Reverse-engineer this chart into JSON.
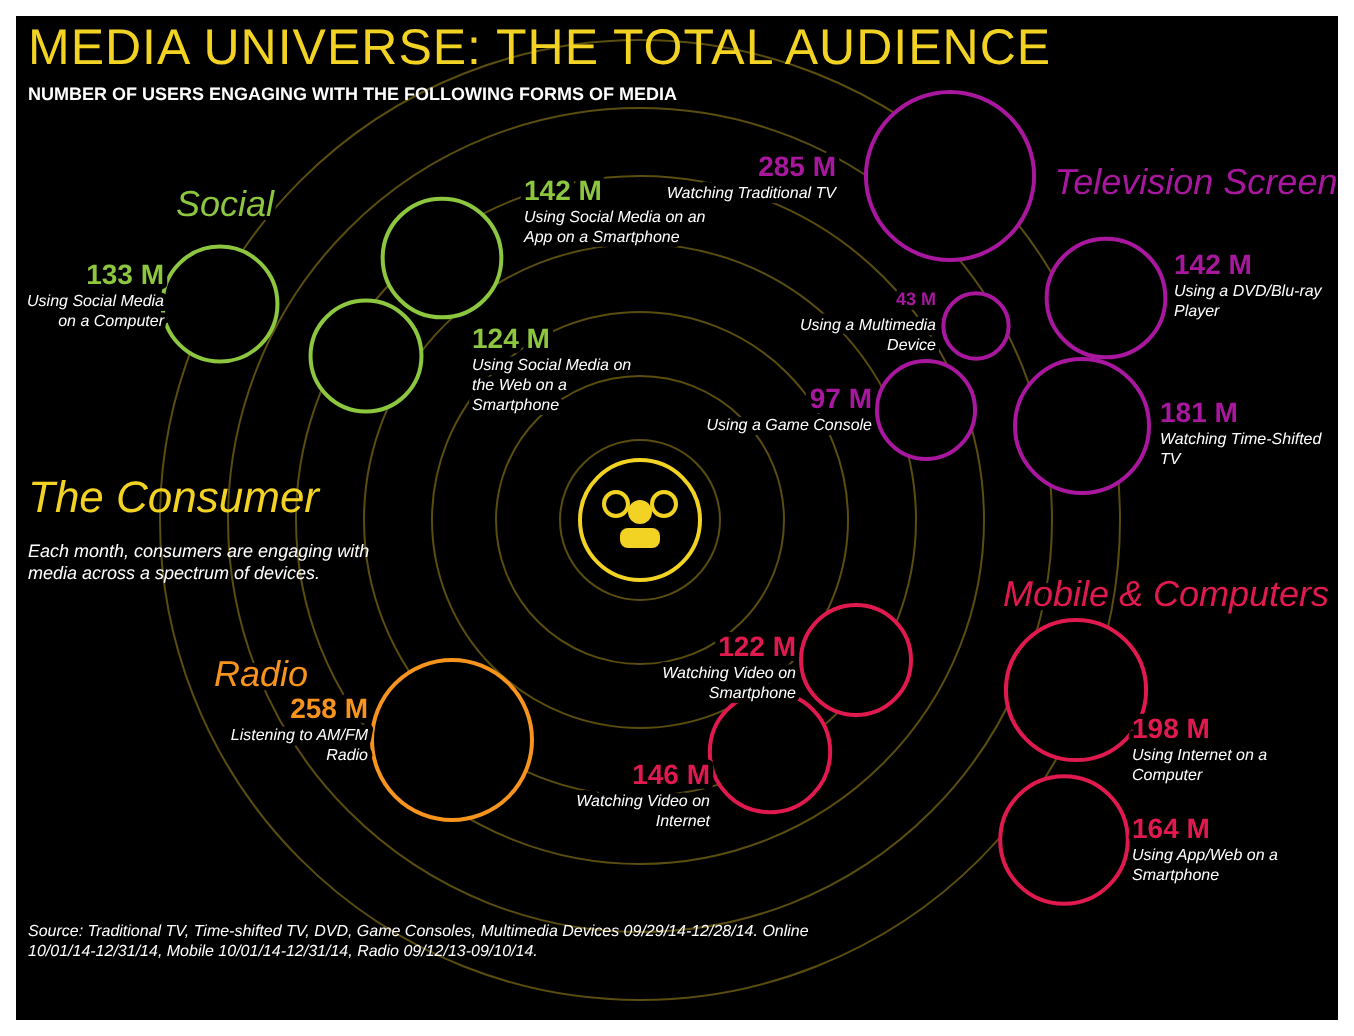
{
  "chart_data": {
    "type": "other",
    "title": "MEDIA UNIVERSE: THE TOTAL AUDIENCE",
    "subtitle": "NUMBER OF USERS ENGAGING WITH THE FOLLOWING FORMS OF MEDIA",
    "categories": [
      "Using Social Media on a Computer",
      "Using Social Media on an App on a Smartphone",
      "Using Social Media on the Web on a Smartphone",
      "Watching Traditional TV",
      "Using a DVD/Blu-ray Player",
      "Using a Multimedia Device",
      "Using a Game Console",
      "Watching Time-Shifted TV",
      "Watching Video on Smartphone",
      "Watching Video on Internet",
      "Using Internet on a Computer",
      "Using App/Web on a Smartphone",
      "Listening to AM/FM Radio"
    ],
    "series": [
      {
        "name": "Social",
        "color": "#8dc63f",
        "values": [
          133,
          142,
          124,
          null,
          null,
          null,
          null,
          null,
          null,
          null,
          null,
          null,
          null
        ],
        "value_labels": [
          "133 M",
          "142 M",
          "124 M",
          null,
          null,
          null,
          null,
          null,
          null,
          null,
          null,
          null,
          null
        ]
      },
      {
        "name": "Television Screen",
        "color": "#a8179e",
        "values": [
          null,
          null,
          null,
          285,
          142,
          43,
          97,
          181,
          null,
          null,
          null,
          null,
          null
        ],
        "value_labels": [
          null,
          null,
          null,
          "285 M",
          "142 M",
          "43 M",
          "97 M",
          "181 M",
          null,
          null,
          null,
          null,
          null
        ]
      },
      {
        "name": "Mobile & Computers",
        "color": "#e0194f",
        "values": [
          null,
          null,
          null,
          null,
          null,
          null,
          null,
          null,
          122,
          146,
          198,
          164,
          null
        ],
        "value_labels": [
          null,
          null,
          null,
          null,
          null,
          null,
          null,
          null,
          "122 M",
          "146 M",
          "198 M",
          "164 M",
          null
        ]
      },
      {
        "name": "Radio",
        "color": "#f7941d",
        "values": [
          null,
          null,
          null,
          null,
          null,
          null,
          null,
          null,
          null,
          null,
          null,
          null,
          258
        ],
        "value_labels": [
          null,
          null,
          null,
          null,
          null,
          null,
          null,
          null,
          null,
          null,
          null,
          null,
          "258 M"
        ]
      }
    ],
    "annotations": [
      "The Consumer",
      "Each month, consumers are engaging with media across a spectrum of devices.",
      "Source: Traditional TV, Time-shifted TV, DVD, Game Consoles, Multimedia Devices 09/29/14-12/28/14. Online 10/01/14-12/31/14, Mobile 10/01/14-12/31/14, Radio 09/12/13-09/10/14."
    ],
    "legend": false
  }
}
